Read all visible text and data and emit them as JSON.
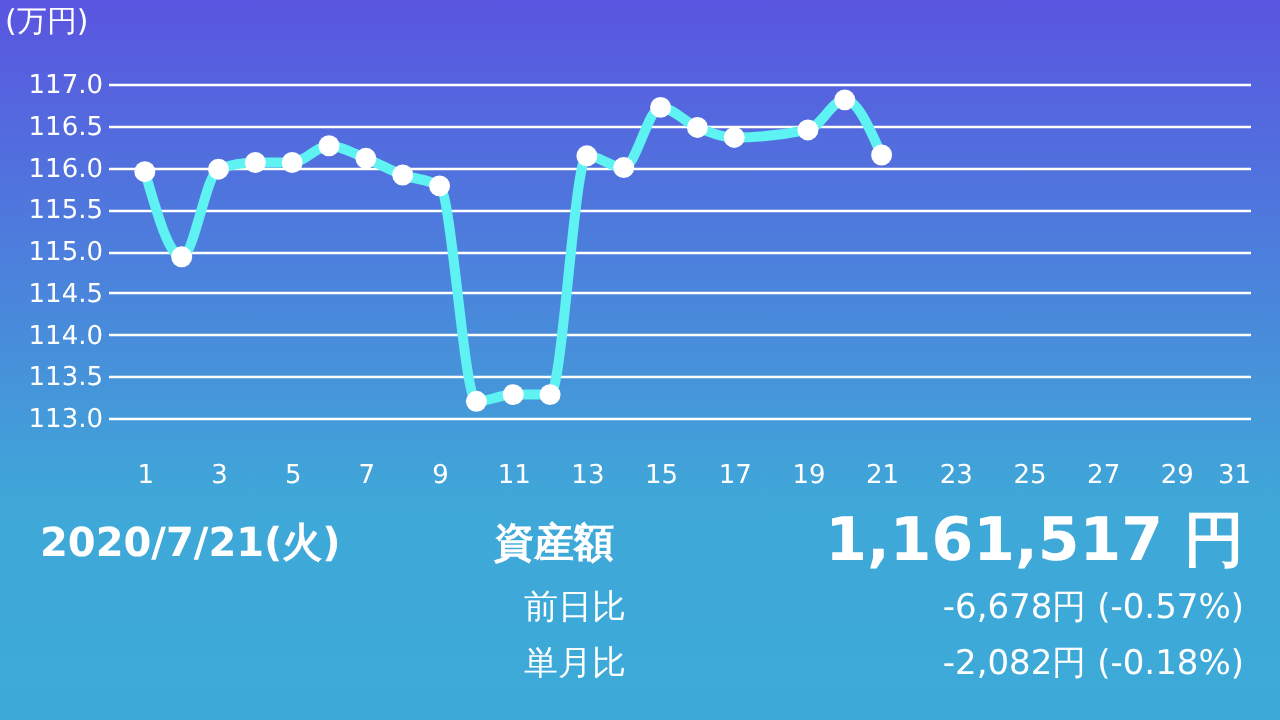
{
  "chart_data": {
    "type": "line",
    "ylabel": "(万円)",
    "x": [
      1,
      2,
      3,
      4,
      5,
      6,
      7,
      8,
      9,
      10,
      11,
      12,
      13,
      14,
      15,
      16,
      17,
      19,
      20,
      21
    ],
    "series": [
      {
        "color": "#5ff2f2",
        "values": [
          115.95,
          114.93,
          115.98,
          116.06,
          116.06,
          116.26,
          116.11,
          115.91,
          115.78,
          113.2,
          113.28,
          113.28,
          116.14,
          116.0,
          116.72,
          116.48,
          116.36,
          116.45,
          116.81,
          116.15
        ]
      }
    ],
    "xlim": [
      0,
      31
    ],
    "xticks": [
      1,
      3,
      5,
      7,
      9,
      11,
      13,
      15,
      17,
      19,
      21,
      23,
      25,
      27,
      29,
      31
    ],
    "ylim": [
      113,
      117
    ],
    "yticks": [
      {
        "value": 113,
        "label": "113.0"
      },
      {
        "value": 113.5,
        "label": "113.5"
      },
      {
        "value": 114,
        "label": "114.0"
      },
      {
        "value": 114.5,
        "label": "114.5"
      },
      {
        "value": 115,
        "label": "115.0"
      },
      {
        "value": 115.5,
        "label": "115.5"
      },
      {
        "value": 116,
        "label": "116.0"
      },
      {
        "value": 116.5,
        "label": "116.5"
      },
      {
        "value": 117,
        "label": "117.0"
      }
    ],
    "grid": "y",
    "marker": "circle",
    "annotations": [
      "2020/7/21(火)",
      "資産額",
      "1,161,517 円",
      "前日比",
      "-6,678円 (-0.57%)",
      "単月比",
      "-2,082円 (-0.18%)"
    ]
  }
}
